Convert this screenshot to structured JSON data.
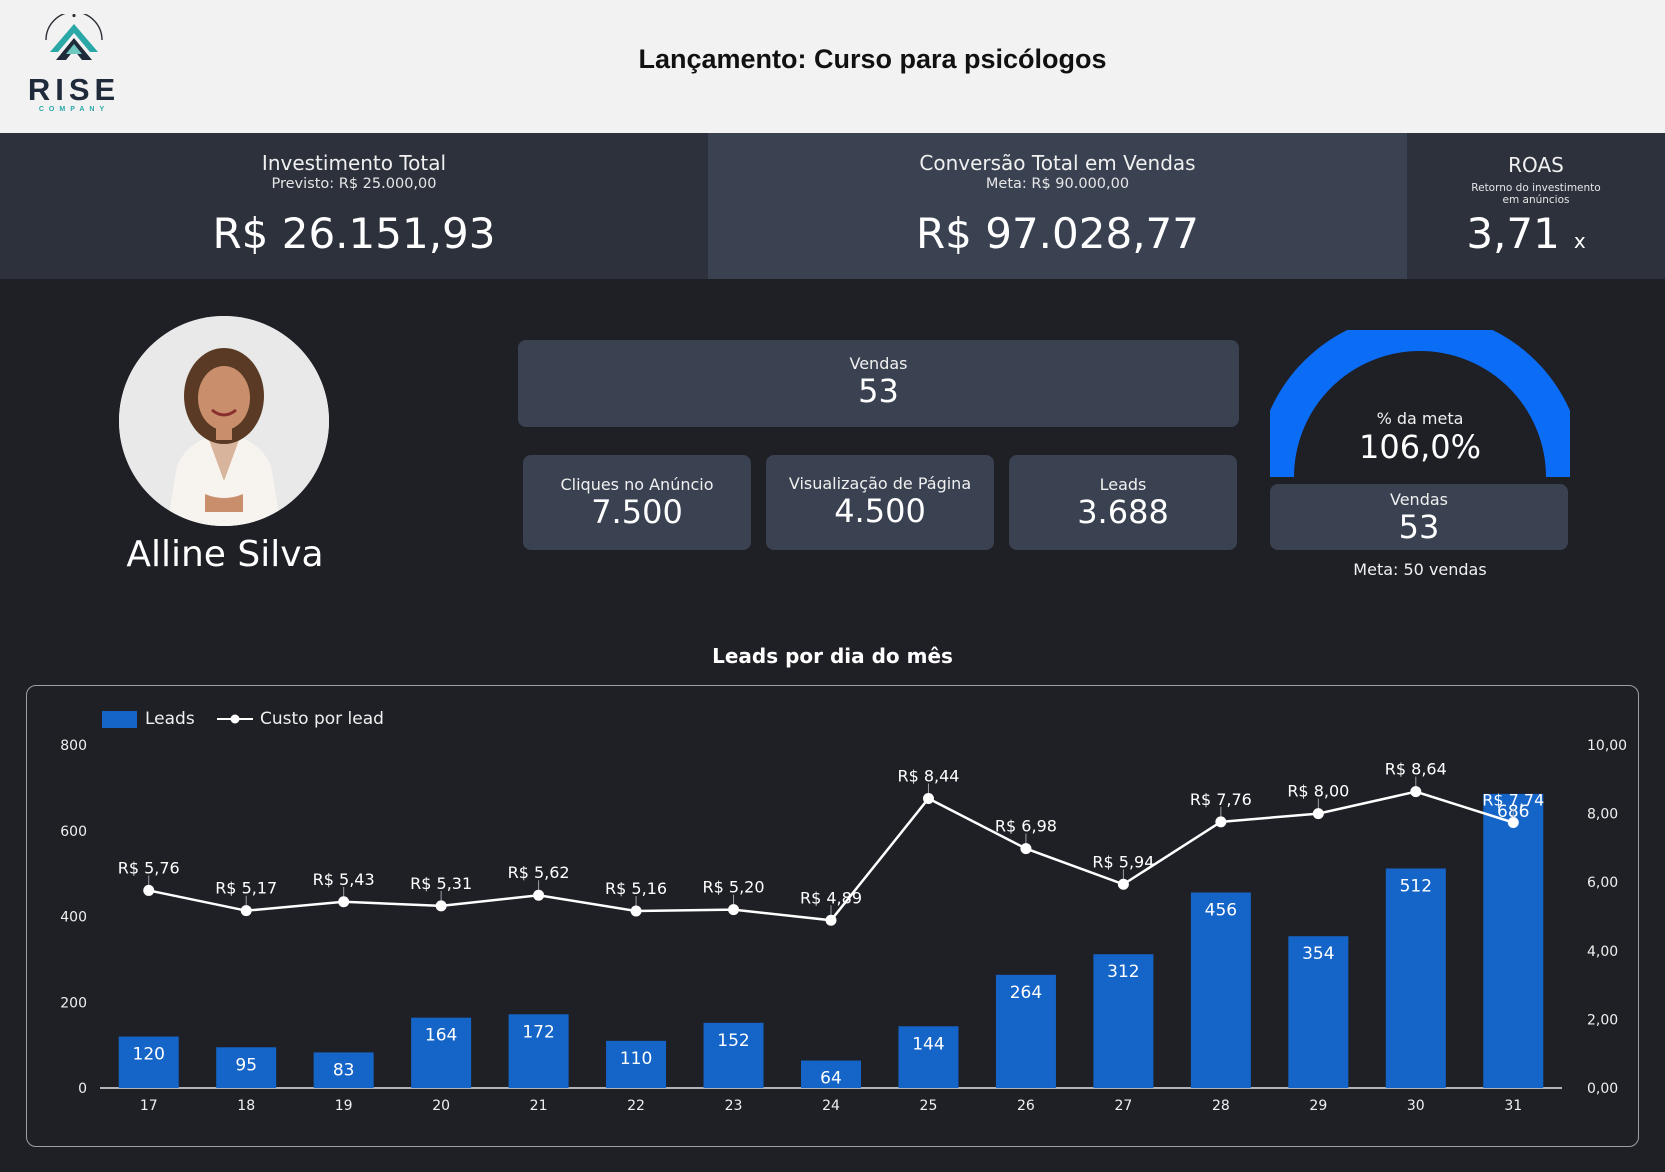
{
  "header": {
    "logo_text": "RISE",
    "logo_subtext": "COMPANY",
    "title": "Lançamento: Curso para psicólogos"
  },
  "kpis": {
    "investment": {
      "label": "Investimento Total",
      "sub": "Previsto: R$ 25.000,00",
      "value": "R$ 26.151,93"
    },
    "conversion": {
      "label": "Conversão Total em Vendas",
      "sub": "Meta: R$ 90.000,00",
      "value": "R$ 97.028,77"
    },
    "roas": {
      "label": "ROAS",
      "sub_line1": "Retorno do investimento",
      "sub_line2": "em anúncios",
      "value": "3,71",
      "suffix": "x"
    }
  },
  "profile": {
    "name": "Alline Silva"
  },
  "cards": {
    "sales": {
      "label": "Vendas",
      "value": "53"
    },
    "clicks": {
      "label": "Cliques no Anúncio",
      "value": "7.500"
    },
    "page_views": {
      "label": "Visualização de Página",
      "value": "4.500"
    },
    "leads": {
      "label": "Leads",
      "value": "3.688"
    }
  },
  "goal": {
    "label": "% da meta",
    "value": "106,0%",
    "percent": 106.0,
    "sales_label": "Vendas",
    "sales_value": "53",
    "meta_text": "Meta: 50 vendas"
  },
  "colors": {
    "bar": "#1565c8",
    "gauge": "#0b6cf5",
    "card": "#3a4252",
    "band_dark": "#2c313c",
    "band_mid": "#3a4252"
  },
  "chart_data": {
    "type": "bar",
    "title": "Leads por dia do mês",
    "categories": [
      "17",
      "18",
      "19",
      "20",
      "21",
      "22",
      "23",
      "24",
      "25",
      "26",
      "27",
      "28",
      "29",
      "30",
      "31"
    ],
    "series": [
      {
        "name": "Leads",
        "type": "bar",
        "axis": "left",
        "values": [
          120,
          95,
          83,
          164,
          172,
          110,
          152,
          64,
          144,
          264,
          312,
          456,
          354,
          512,
          686
        ]
      },
      {
        "name": "Custo por lead",
        "type": "line",
        "axis": "right",
        "values": [
          5.76,
          5.17,
          5.43,
          5.31,
          5.62,
          5.16,
          5.2,
          4.89,
          8.44,
          6.98,
          5.94,
          7.76,
          8.0,
          8.64,
          7.74
        ],
        "labels": [
          "R$ 5,76",
          "R$ 5,17",
          "R$ 5,43",
          "R$ 5,31",
          "R$ 5,62",
          "R$ 5,16",
          "R$ 5,20",
          "R$ 4,89",
          "R$ 8,44",
          "R$ 6,98",
          "R$ 5,94",
          "R$ 7,76",
          "R$ 8,00",
          "R$ 8,64",
          "R$ 7,74"
        ]
      }
    ],
    "y_left": {
      "ylim": [
        0,
        800
      ],
      "ticks": [
        "0",
        "200",
        "400",
        "600",
        "800"
      ]
    },
    "y_right": {
      "ylim": [
        0,
        10
      ],
      "ticks": [
        "0,00",
        "2,00",
        "4,00",
        "6,00",
        "8,00",
        "10,00"
      ]
    },
    "legend": {
      "position": "top-left"
    }
  }
}
